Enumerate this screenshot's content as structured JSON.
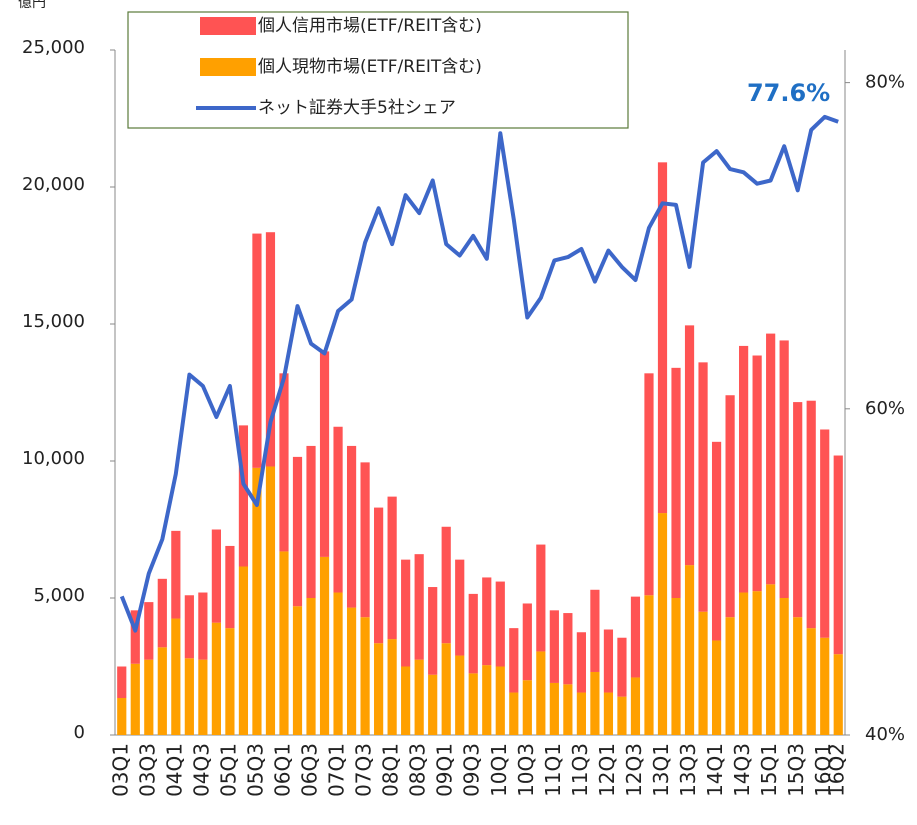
{
  "chart_data": {
    "type": "bar",
    "stacked": true,
    "y_label": "億円",
    "categories": [
      "03Q1",
      null,
      "03Q3",
      null,
      "04Q1",
      null,
      "04Q3",
      null,
      "05Q1",
      null,
      "05Q3",
      null,
      "06Q1",
      null,
      "06Q3",
      null,
      "07Q1",
      null,
      "07Q3",
      null,
      "08Q1",
      null,
      "08Q3",
      null,
      "09Q1",
      null,
      "09Q3",
      null,
      "10Q1",
      null,
      "10Q3",
      null,
      "11Q1",
      null,
      "11Q3",
      null,
      "12Q1",
      null,
      "12Q3",
      null,
      "13Q1",
      null,
      "13Q3",
      null,
      "14Q1",
      null,
      "14Q3",
      null,
      "15Q1",
      null,
      "15Q3",
      null,
      "16Q1",
      "16Q2"
    ],
    "series": [
      {
        "name": "個人信用市場(ETF/REIT含む)",
        "color": "#ff5353",
        "values": [
          1150,
          1950,
          2100,
          2500,
          3200,
          2300,
          2450,
          3400,
          3000,
          5150,
          8550,
          8550,
          6500,
          5450,
          5550,
          7500,
          6050,
          5900,
          5650,
          4950,
          5200,
          3900,
          3850,
          3200,
          4250,
          3500,
          2900,
          3200,
          3100,
          2350,
          2800,
          3900,
          2650,
          2600,
          2200,
          3000,
          2300,
          2150,
          2950,
          8100,
          12800,
          8400,
          8750,
          9100,
          7250,
          8100,
          9000,
          8600,
          9150,
          9400,
          7850,
          8300,
          7600,
          7250
        ]
      },
      {
        "name": "個人現物市場(ETF/REIT含む)",
        "color": "#ffa000",
        "values": [
          1350,
          2600,
          2750,
          3200,
          4250,
          2800,
          2750,
          4100,
          3900,
          6150,
          9750,
          9800,
          6700,
          4700,
          5000,
          6500,
          5200,
          4650,
          4300,
          3350,
          3500,
          2500,
          2750,
          2200,
          3350,
          2900,
          2250,
          2550,
          2500,
          1550,
          2000,
          3050,
          1900,
          1850,
          1550,
          2300,
          1550,
          1400,
          2100,
          5100,
          8100,
          5000,
          6200,
          4500,
          3450,
          4300,
          5200,
          5250,
          5500,
          5000,
          4300,
          3900,
          3550,
          2950
        ]
      },
      {
        "name": "ネット証券大手5社シェア",
        "color": "#3d67c9",
        "type": "line",
        "axis": "y2",
        "values": [
          48.5,
          46.4,
          49.9,
          52.0,
          56.0,
          62.1,
          61.4,
          59.5,
          61.4,
          55.4,
          54.1,
          59.2,
          61.9,
          66.3,
          64.0,
          63.4,
          66.0,
          66.7,
          70.2,
          72.3,
          70.1,
          73.1,
          72.0,
          74.0,
          70.1,
          69.4,
          70.6,
          69.2,
          76.9,
          71.6,
          65.6,
          66.8,
          69.1,
          69.3,
          69.8,
          67.8,
          69.7,
          68.7,
          67.9,
          71.1,
          72.6,
          72.5,
          68.7,
          75.1,
          75.8,
          74.7,
          74.5,
          73.8,
          74.0,
          76.1,
          73.4,
          77.1,
          77.9,
          77.6
        ],
        "value_labels": [
          null,
          null,
          null,
          null,
          null,
          null,
          null,
          null,
          null,
          null,
          null,
          null,
          null,
          null,
          null,
          null,
          null,
          null,
          null,
          null,
          null,
          null,
          null,
          null,
          null,
          null,
          null,
          null,
          null,
          null,
          null,
          null,
          null,
          null,
          null,
          null,
          null,
          null,
          null,
          null,
          null,
          null,
          null,
          null,
          null,
          null,
          null,
          null,
          null,
          null,
          null,
          null,
          null,
          "77.6%"
        ]
      }
    ],
    "ylim": [
      0,
      25000
    ],
    "yticks": [
      0,
      {
        "value": 5000,
        "label": "5,000"
      },
      {
        "value": 10000,
        "label": "10,000"
      },
      {
        "value": 15000,
        "label": "15,000"
      },
      {
        "value": 20000,
        "label": "20,000"
      },
      {
        "value": 25000,
        "label": "25,000"
      }
    ],
    "y2lim": [
      40,
      82
    ],
    "y2ticks": [
      {
        "value": 40,
        "label": "40%"
      },
      {
        "value": 60,
        "label": "60%"
      },
      {
        "value": 80,
        "label": "80%"
      }
    ],
    "legend": "top-left",
    "grid": false
  }
}
